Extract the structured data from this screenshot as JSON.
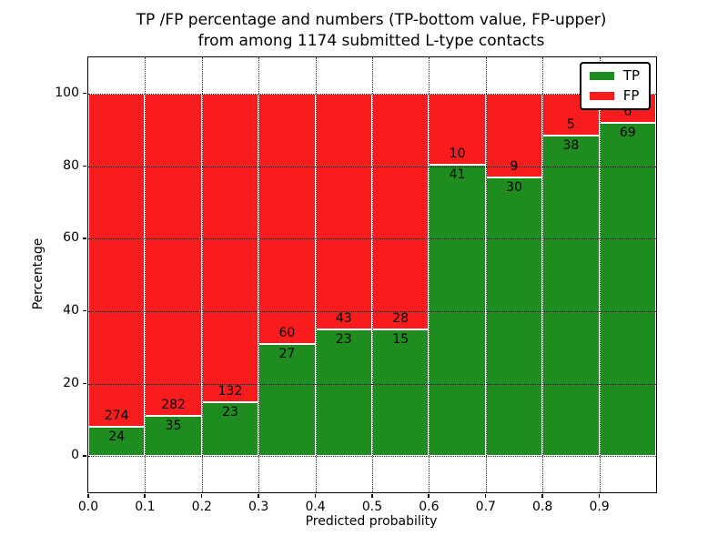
{
  "chart_data": {
    "type": "stacked_bar",
    "title_line1": "TP /FP percentage and numbers (TP-bottom value, FP-upper)",
    "title_line2": "from among 1174 submitted L-type contacts",
    "xlabel": "Predicted probability",
    "ylabel": "Percentage",
    "xlim": [
      0,
      1
    ],
    "ylim": [
      -10,
      110
    ],
    "x_tick_values": [
      0,
      0.1,
      0.2,
      0.3,
      0.4,
      0.5,
      0.6,
      0.7,
      0.8,
      0.9
    ],
    "x_tick_labels": [
      "0.0",
      "0.1",
      "0.2",
      "0.3",
      "0.4",
      "0.5",
      "0.6",
      "0.7",
      "0.8",
      "0.9"
    ],
    "y_tick_values": [
      0,
      20,
      40,
      60,
      80,
      100
    ],
    "y_tick_labels": [
      "0",
      "20",
      "40",
      "60",
      "80",
      "100"
    ],
    "grid": "dotted",
    "legend_position": "upper-right",
    "legend": [
      {
        "label": "TP",
        "color": "#1f8c1f"
      },
      {
        "label": "FP",
        "color": "#f91c1c"
      }
    ],
    "colors": {
      "tp": "#1f8c1f",
      "fp": "#f91c1c",
      "bar_edge": "#ffffff",
      "grid": "#222222",
      "spine": "#000000",
      "background": "#ffffff"
    },
    "bars": [
      {
        "x_start": 0.0,
        "x_end": 0.1,
        "tp_count": 24,
        "fp_count": 274,
        "tp_percent": 8.05
      },
      {
        "x_start": 0.1,
        "x_end": 0.2,
        "tp_count": 35,
        "fp_count": 282,
        "tp_percent": 11.04
      },
      {
        "x_start": 0.2,
        "x_end": 0.3,
        "tp_count": 23,
        "fp_count": 132,
        "tp_percent": 14.84
      },
      {
        "x_start": 0.3,
        "x_end": 0.4,
        "tp_count": 27,
        "fp_count": 60,
        "tp_percent": 31.03
      },
      {
        "x_start": 0.4,
        "x_end": 0.5,
        "tp_count": 23,
        "fp_count": 43,
        "tp_percent": 34.85
      },
      {
        "x_start": 0.5,
        "x_end": 0.6,
        "tp_count": 15,
        "fp_count": 28,
        "tp_percent": 34.88
      },
      {
        "x_start": 0.6,
        "x_end": 0.7,
        "tp_count": 41,
        "fp_count": 10,
        "tp_percent": 80.39
      },
      {
        "x_start": 0.7,
        "x_end": 0.8,
        "tp_count": 30,
        "fp_count": 9,
        "tp_percent": 76.92
      },
      {
        "x_start": 0.8,
        "x_end": 0.9,
        "tp_count": 38,
        "fp_count": 5,
        "tp_percent": 88.37
      },
      {
        "x_start": 0.9,
        "x_end": 1.0,
        "tp_count": 69,
        "fp_count": 6,
        "tp_percent": 92.0
      }
    ]
  }
}
